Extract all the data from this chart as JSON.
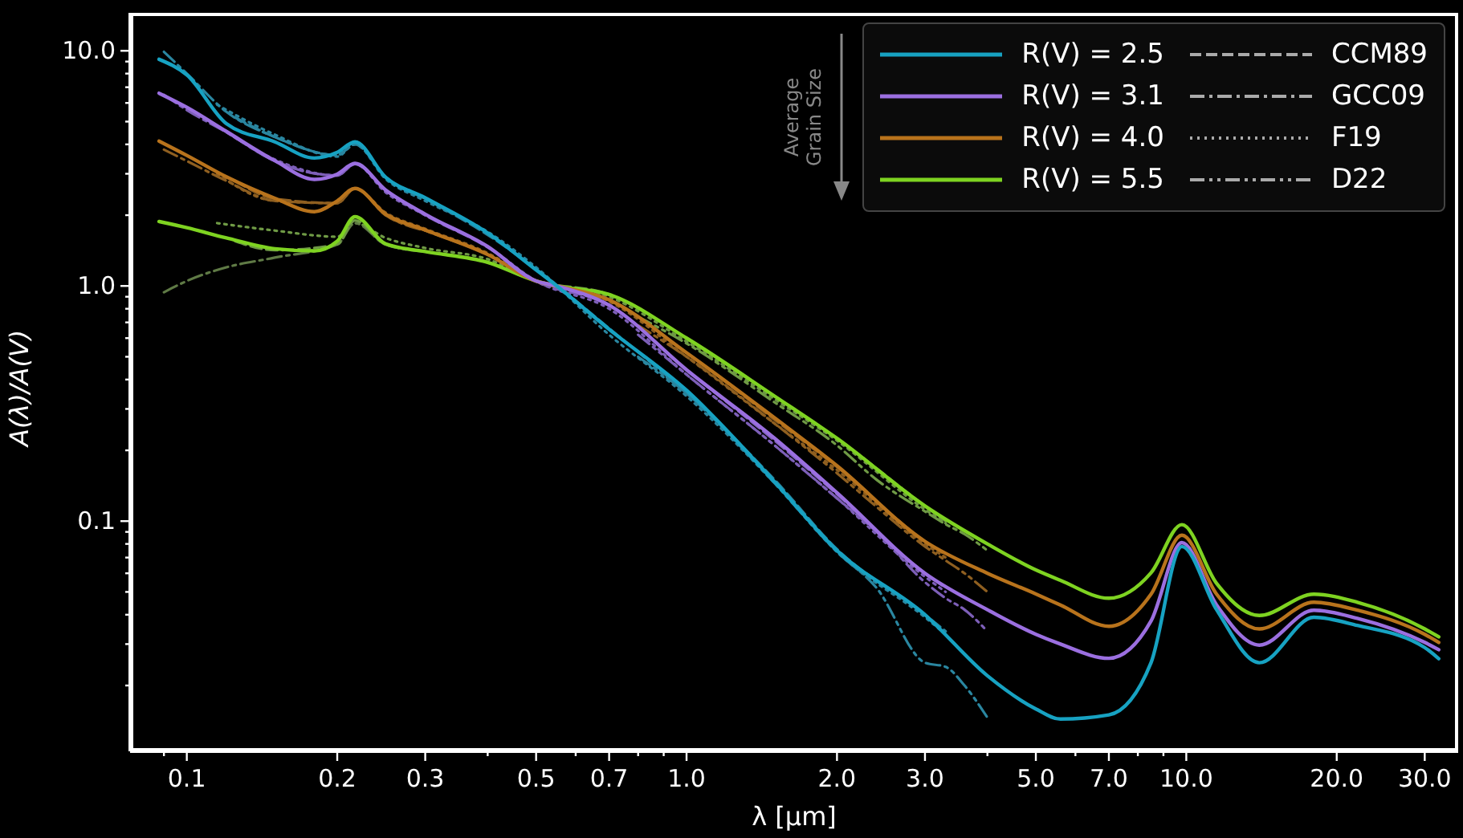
{
  "chart_data": {
    "type": "line",
    "xlabel": "λ [μm]",
    "ylabel": "A(λ)/A(V)",
    "log": "xy",
    "marker": "none",
    "legend": "top right",
    "annotations": [
      "Average Grain Size"
    ],
    "xlim": [
      0.077,
      35
    ],
    "ylim": [
      0.0105,
      14.5
    ],
    "xticks": [
      {
        "value": 0.09,
        "label": null
      },
      {
        "value": 0.1,
        "label": "0.1"
      },
      {
        "value": 0.2,
        "label": "0.2"
      },
      {
        "value": 0.3,
        "label": "0.3"
      },
      {
        "value": 0.4,
        "label": null
      },
      {
        "value": 0.5,
        "label": "0.5"
      },
      {
        "value": 0.6,
        "label": null
      },
      {
        "value": 0.7,
        "label": "0.7"
      },
      {
        "value": 0.8,
        "label": null
      },
      {
        "value": 0.9,
        "label": null
      },
      {
        "value": 1,
        "label": "1.0"
      },
      {
        "value": 2,
        "label": "2.0"
      },
      {
        "value": 3,
        "label": "3.0"
      },
      {
        "value": 4,
        "label": null
      },
      {
        "value": 5,
        "label": "5.0"
      },
      {
        "value": 6,
        "label": null
      },
      {
        "value": 7,
        "label": "7.0"
      },
      {
        "value": 8,
        "label": null
      },
      {
        "value": 9,
        "label": null
      },
      {
        "value": 10,
        "label": "10.0"
      },
      {
        "value": 20,
        "label": "20.0"
      },
      {
        "value": 30,
        "label": "30.0"
      }
    ],
    "yticks": [
      {
        "value": 0.02,
        "label": null
      },
      {
        "value": 0.03,
        "label": null
      },
      {
        "value": 0.04,
        "label": null
      },
      {
        "value": 0.05,
        "label": null
      },
      {
        "value": 0.06,
        "label": null
      },
      {
        "value": 0.07,
        "label": null
      },
      {
        "value": 0.08,
        "label": null
      },
      {
        "value": 0.09,
        "label": null
      },
      {
        "value": 0.1,
        "label": "0.1"
      },
      {
        "value": 0.2,
        "label": null
      },
      {
        "value": 0.3,
        "label": null
      },
      {
        "value": 0.4,
        "label": null
      },
      {
        "value": 0.5,
        "label": null
      },
      {
        "value": 0.6,
        "label": null
      },
      {
        "value": 0.7,
        "label": null
      },
      {
        "value": 0.8,
        "label": null
      },
      {
        "value": 0.9,
        "label": null
      },
      {
        "value": 1,
        "label": "1.0"
      },
      {
        "value": 2,
        "label": null
      },
      {
        "value": 3,
        "label": null
      },
      {
        "value": 4,
        "label": null
      },
      {
        "value": 5,
        "label": null
      },
      {
        "value": 6,
        "label": null
      },
      {
        "value": 7,
        "label": null
      },
      {
        "value": 8,
        "label": null
      },
      {
        "value": 9,
        "label": null
      },
      {
        "value": 10,
        "label": "10.0"
      }
    ],
    "series": [
      {
        "name": "R(V) = 2.5",
        "color": "#17a2c2",
        "line_style": "solid",
        "x": [
          0.088,
          0.1,
          0.12,
          0.15,
          0.18,
          0.2,
          0.217,
          0.25,
          0.3,
          0.4,
          0.5,
          0.55,
          0.7,
          1,
          1.5,
          2,
          3,
          4,
          5,
          5.6,
          7,
          8.5,
          9.8,
          11.5,
          14,
          18,
          22,
          30,
          32
        ],
        "values": [
          9.2,
          7.9,
          4.9,
          4.1,
          3.5,
          3.7,
          4.1,
          2.9,
          2.37,
          1.68,
          1.17,
          1.0,
          0.654,
          0.36,
          0.147,
          0.075,
          0.04,
          0.022,
          0.0159,
          0.0144,
          0.015,
          0.025,
          0.078,
          0.042,
          0.025,
          0.039,
          0.036,
          0.029,
          0.026
        ]
      },
      {
        "name": "R(V) = 3.1",
        "color": "#9b6fe0",
        "line_style": "solid",
        "x": [
          0.088,
          0.1,
          0.12,
          0.15,
          0.18,
          0.2,
          0.217,
          0.25,
          0.3,
          0.4,
          0.5,
          0.55,
          0.7,
          1,
          1.5,
          2,
          3,
          4,
          5,
          5.6,
          7,
          8.5,
          9.8,
          11.5,
          14,
          18,
          22,
          30,
          32
        ],
        "values": [
          6.6,
          5.75,
          4.54,
          3.41,
          2.84,
          2.99,
          3.32,
          2.56,
          2.02,
          1.47,
          1.05,
          1.0,
          0.828,
          0.44,
          0.225,
          0.132,
          0.06,
          0.042,
          0.033,
          0.03,
          0.0261,
          0.0376,
          0.081,
          0.044,
          0.0297,
          0.0418,
          0.0386,
          0.0305,
          0.0284
        ]
      },
      {
        "name": "R(V) = 4.0",
        "color": "#b8731c",
        "line_style": "solid",
        "x": [
          0.088,
          0.1,
          0.12,
          0.15,
          0.18,
          0.2,
          0.217,
          0.25,
          0.3,
          0.4,
          0.5,
          0.55,
          0.7,
          1,
          1.5,
          2,
          3,
          4,
          5,
          5.6,
          7,
          8.5,
          9.8,
          11.5,
          14,
          18,
          22,
          30,
          32
        ],
        "values": [
          4.13,
          3.59,
          2.91,
          2.36,
          2.07,
          2.3,
          2.6,
          2.02,
          1.73,
          1.36,
          1.05,
          1.0,
          0.873,
          0.52,
          0.275,
          0.172,
          0.082,
          0.06,
          0.049,
          0.044,
          0.0357,
          0.0489,
          0.0871,
          0.0489,
          0.0348,
          0.0452,
          0.0418,
          0.033,
          0.0305
        ]
      },
      {
        "name": "R(V) = 5.5",
        "color": "#7ed321",
        "line_style": "solid",
        "x": [
          0.088,
          0.1,
          0.12,
          0.15,
          0.18,
          0.2,
          0.217,
          0.25,
          0.3,
          0.4,
          0.5,
          0.55,
          0.7,
          1,
          1.5,
          2,
          3,
          4,
          5,
          5.6,
          7,
          8.5,
          9.8,
          11.5,
          14,
          18,
          22,
          30,
          32
        ],
        "values": [
          1.88,
          1.77,
          1.6,
          1.44,
          1.41,
          1.55,
          1.97,
          1.51,
          1.4,
          1.26,
          1.05,
          1.0,
          0.92,
          0.6,
          0.34,
          0.225,
          0.116,
          0.08,
          0.062,
          0.056,
          0.047,
          0.0603,
          0.0966,
          0.0543,
          0.0397,
          0.0489,
          0.0452,
          0.0348,
          0.0322
        ]
      },
      {
        "name": "CCM89",
        "color": "#aaaaaa",
        "line_style": "dashed"
      },
      {
        "name": "GCC09",
        "color": "#aaaaaa",
        "line_style": "dashdot"
      },
      {
        "name": "F19",
        "color": "#aaaaaa",
        "line_style": "dotted"
      },
      {
        "name": "D22",
        "color": "#aaaaaa",
        "line_style": "dashdotdot"
      },
      {
        "color": "#2a86a0",
        "line_style": "dashed",
        "x": [
          0.125,
          0.15,
          0.2,
          0.217,
          0.25,
          0.3,
          0.4,
          0.5,
          0.7,
          1,
          1.5,
          2,
          3,
          3.3
        ],
        "values": [
          5.2,
          4.3,
          3.6,
          4.0,
          2.9,
          2.35,
          1.65,
          1.18,
          0.66,
          0.35,
          0.15,
          0.076,
          0.04,
          0.034
        ]
      },
      {
        "color": "#7d5fb8",
        "line_style": "dashed",
        "x": [
          0.125,
          0.15,
          0.2,
          0.217,
          0.25,
          0.3,
          0.4,
          0.5,
          0.7,
          1,
          1.5,
          2,
          3,
          3.3
        ],
        "values": [
          4.3,
          3.4,
          2.95,
          3.3,
          2.55,
          2.0,
          1.46,
          1.05,
          0.83,
          0.44,
          0.22,
          0.13,
          0.06,
          0.052
        ]
      },
      {
        "color": "#8f5f20",
        "line_style": "dashed",
        "x": [
          0.125,
          0.15,
          0.2,
          0.217,
          0.25,
          0.3,
          0.4,
          0.5,
          0.7,
          1,
          1.5,
          2,
          3,
          3.3
        ],
        "values": [
          2.8,
          2.35,
          2.25,
          2.6,
          2.0,
          1.72,
          1.36,
          1.05,
          0.87,
          0.52,
          0.27,
          0.17,
          0.082,
          0.072
        ]
      },
      {
        "color": "#6f9a45",
        "line_style": "dashed",
        "x": [
          0.125,
          0.15,
          0.2,
          0.217,
          0.25,
          0.3,
          0.4,
          0.5,
          0.7,
          1,
          1.5,
          2,
          3,
          3.3
        ],
        "values": [
          1.55,
          1.42,
          1.5,
          1.9,
          1.5,
          1.4,
          1.26,
          1.05,
          0.92,
          0.6,
          0.34,
          0.225,
          0.116,
          0.1
        ]
      },
      {
        "color": "#2a86a0",
        "line_style": "dashdot",
        "x": [
          0.09,
          0.1,
          0.12,
          0.15,
          0.2,
          0.217,
          0.25,
          0.3
        ],
        "values": [
          9.9,
          8.0,
          5.5,
          4.3,
          3.6,
          4.1,
          2.9,
          2.37
        ]
      },
      {
        "color": "#7d5fb8",
        "line_style": "dashdot",
        "x": [
          0.09,
          0.1,
          0.12,
          0.15,
          0.2,
          0.217,
          0.25,
          0.3
        ],
        "values": [
          6.5,
          5.6,
          4.5,
          3.4,
          2.95,
          3.3,
          2.55,
          2.0
        ]
      },
      {
        "color": "#8f5f20",
        "line_style": "dashdot",
        "x": [
          0.09,
          0.1,
          0.12,
          0.15,
          0.2,
          0.217,
          0.25,
          0.3
        ],
        "values": [
          3.8,
          3.4,
          2.8,
          2.3,
          2.25,
          2.6,
          2.0,
          1.72
        ]
      },
      {
        "color": "#5f7a45",
        "line_style": "dashdot",
        "x": [
          0.09,
          0.1,
          0.12,
          0.15,
          0.2,
          0.217,
          0.25,
          0.3
        ],
        "values": [
          0.94,
          1.05,
          1.2,
          1.32,
          1.5,
          1.85,
          1.5,
          1.4
        ]
      },
      {
        "color": "#2a86a0",
        "line_style": "dotted",
        "x": [
          0.115,
          0.15,
          0.2,
          0.217,
          0.25,
          0.3,
          0.4,
          0.5,
          0.7,
          1,
          1.5,
          2,
          3,
          3.3
        ],
        "values": [
          5.9,
          4.4,
          3.55,
          4.0,
          2.85,
          2.3,
          1.7,
          1.2,
          0.62,
          0.34,
          0.145,
          0.074,
          0.039,
          0.033
        ]
      },
      {
        "color": "#7d5fb8",
        "line_style": "dotted",
        "x": [
          0.115,
          0.15,
          0.2,
          0.217,
          0.25,
          0.3,
          0.4,
          0.5,
          0.7,
          1,
          1.5,
          2,
          3,
          3.3
        ],
        "values": [
          4.8,
          3.45,
          2.95,
          3.3,
          2.5,
          2.0,
          1.47,
          1.05,
          0.8,
          0.42,
          0.21,
          0.125,
          0.058,
          0.05
        ]
      },
      {
        "color": "#8f5f20",
        "line_style": "dotted",
        "x": [
          0.115,
          0.15,
          0.2,
          0.217,
          0.25,
          0.3,
          0.4,
          0.5,
          0.7,
          1,
          1.5,
          2,
          3,
          3.3
        ],
        "values": [
          3.0,
          2.3,
          2.25,
          2.6,
          2.05,
          1.75,
          1.38,
          1.05,
          0.86,
          0.5,
          0.26,
          0.165,
          0.08,
          0.07
        ]
      },
      {
        "color": "#6f9a45",
        "line_style": "dotted",
        "x": [
          0.115,
          0.15,
          0.2,
          0.217,
          0.25,
          0.3,
          0.4,
          0.5,
          0.7,
          1,
          1.5,
          2,
          3,
          3.3
        ],
        "values": [
          1.85,
          1.72,
          1.62,
          1.85,
          1.6,
          1.45,
          1.3,
          1.05,
          0.9,
          0.58,
          0.33,
          0.22,
          0.112,
          0.098
        ]
      },
      {
        "color": "#2a86a0",
        "line_style": "dashdotdot",
        "x": [
          0.8,
          1,
          1.5,
          2,
          2.4,
          3,
          3.3,
          3.6,
          4
        ],
        "values": [
          0.5,
          0.35,
          0.145,
          0.074,
          0.052,
          0.025,
          0.024,
          0.02,
          0.0146
        ]
      },
      {
        "color": "#7d5fb8",
        "line_style": "dashdotdot",
        "x": [
          0.8,
          1,
          1.5,
          2,
          2.4,
          3,
          3.3,
          3.6,
          4
        ],
        "values": [
          0.62,
          0.42,
          0.21,
          0.125,
          0.09,
          0.055,
          0.047,
          0.042,
          0.034
        ]
      },
      {
        "color": "#8f5f20",
        "line_style": "dashdotdot",
        "x": [
          0.8,
          1,
          1.5,
          2,
          2.4,
          3,
          3.3,
          3.6,
          4
        ],
        "values": [
          0.68,
          0.5,
          0.26,
          0.16,
          0.115,
          0.078,
          0.068,
          0.06,
          0.05
        ]
      },
      {
        "color": "#6f9a45",
        "line_style": "dashdotdot",
        "x": [
          0.8,
          1,
          1.5,
          2,
          2.4,
          3,
          3.3,
          3.6,
          4
        ],
        "values": [
          0.74,
          0.57,
          0.32,
          0.21,
          0.15,
          0.11,
          0.097,
          0.088,
          0.075
        ]
      }
    ]
  }
}
